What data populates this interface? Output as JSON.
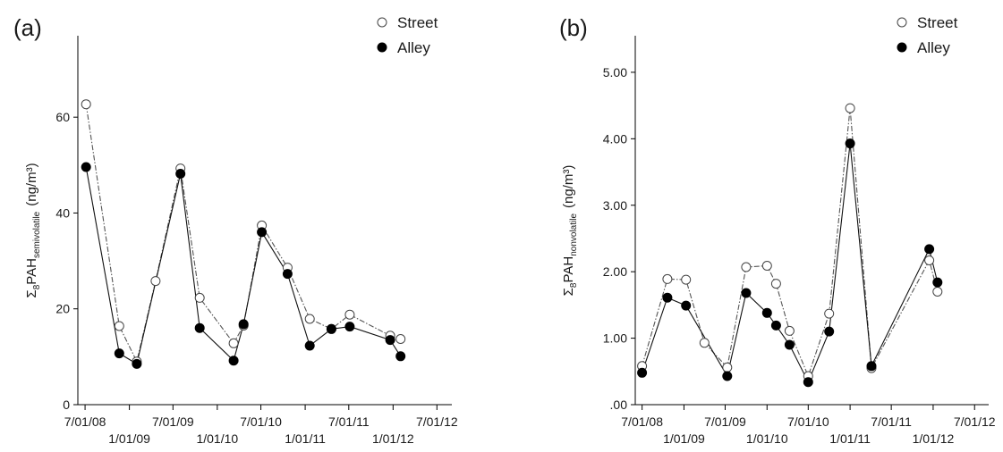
{
  "chart_data": [
    {
      "type": "line",
      "panel_label": "(a)",
      "ylabel": {
        "prefix": "Σ",
        "prefix_sub": "8",
        "main": "PAH",
        "sub": "semivolatile",
        "unit": "(ng/m³)"
      },
      "ylim": [
        0,
        77
      ],
      "yticks": [
        0,
        20,
        40,
        60
      ],
      "ytick_labels": [
        "0",
        "20",
        "40",
        "60"
      ],
      "xlim": [
        "2008-06-01",
        "2012-09-01"
      ],
      "xticks": [
        {
          "date": "2008-07-01",
          "label": "7/01/08",
          "row": 1
        },
        {
          "date": "2009-01-01",
          "label": "1/01/09",
          "row": 2
        },
        {
          "date": "2009-07-01",
          "label": "7/01/09",
          "row": 1
        },
        {
          "date": "2010-01-01",
          "label": "1/01/10",
          "row": 2
        },
        {
          "date": "2010-07-01",
          "label": "7/01/10",
          "row": 1
        },
        {
          "date": "2011-01-01",
          "label": "1/01/11",
          "row": 2
        },
        {
          "date": "2011-07-01",
          "label": "7/01/11",
          "row": 1
        },
        {
          "date": "2012-01-01",
          "label": "1/01/12",
          "row": 2
        },
        {
          "date": "2012-07-01",
          "label": "7/01/12",
          "row": 1
        }
      ],
      "legend": {
        "position": "top-right",
        "entries": [
          "Street",
          "Alley"
        ]
      },
      "series": [
        {
          "name": "Street",
          "marker": "open-circle",
          "x": [
            "2008-07-05",
            "2008-11-20",
            "2009-02-01",
            "2009-04-20",
            "2009-08-01",
            "2009-10-20",
            "2010-03-10",
            "2010-04-20",
            "2010-07-05",
            "2010-10-20",
            "2011-01-20",
            "2011-04-20",
            "2011-07-05",
            "2011-12-20",
            "2012-02-01"
          ],
          "y": [
            62.7,
            16.4,
            9.0,
            25.8,
            49.3,
            22.3,
            12.8,
            16.5,
            37.4,
            28.6,
            17.9,
            15.8,
            18.8,
            14.4,
            13.7
          ]
        },
        {
          "name": "Alley",
          "marker": "filled-circle",
          "x": [
            "2008-07-05",
            "2008-11-20",
            "2009-02-01",
            "2009-08-01",
            "2009-10-20",
            "2010-03-10",
            "2010-04-20",
            "2010-07-05",
            "2010-10-20",
            "2011-01-20",
            "2011-04-20",
            "2011-07-05",
            "2011-12-20",
            "2012-02-01"
          ],
          "y": [
            49.6,
            10.7,
            8.5,
            48.2,
            16.0,
            9.2,
            16.8,
            36.0,
            27.3,
            12.3,
            15.8,
            16.3,
            13.5,
            10.1
          ]
        }
      ]
    },
    {
      "type": "line",
      "panel_label": "(b)",
      "ylabel": {
        "prefix": "Σ",
        "prefix_sub": "8",
        "main": "PAH",
        "sub": "nonvolatile",
        "unit": "(ng/m³)"
      },
      "ylim": [
        0,
        5.55
      ],
      "yticks": [
        0,
        1,
        2,
        3,
        4,
        5
      ],
      "ytick_labels": [
        ".00",
        "1.00",
        "2.00",
        "3.00",
        "4.00",
        "5.00"
      ],
      "xlim": [
        "2008-06-01",
        "2012-09-01"
      ],
      "xticks": [
        {
          "date": "2008-07-01",
          "label": "7/01/08",
          "row": 1
        },
        {
          "date": "2009-01-01",
          "label": "1/01/09",
          "row": 2
        },
        {
          "date": "2009-07-01",
          "label": "7/01/09",
          "row": 1
        },
        {
          "date": "2010-01-01",
          "label": "1/01/10",
          "row": 2
        },
        {
          "date": "2010-07-01",
          "label": "7/01/10",
          "row": 1
        },
        {
          "date": "2011-01-01",
          "label": "1/01/11",
          "row": 2
        },
        {
          "date": "2011-07-01",
          "label": "7/01/11",
          "row": 1
        },
        {
          "date": "2012-01-01",
          "label": "1/01/12",
          "row": 2
        },
        {
          "date": "2012-07-01",
          "label": "7/01/12",
          "row": 1
        }
      ],
      "legend": {
        "position": "top-right",
        "entries": [
          "Street",
          "Alley"
        ]
      },
      "series": [
        {
          "name": "Street",
          "marker": "open-circle",
          "x": [
            "2008-07-01",
            "2008-10-20",
            "2009-01-10",
            "2009-04-01",
            "2009-07-10",
            "2009-10-01",
            "2010-01-01",
            "2010-02-10",
            "2010-04-10",
            "2010-07-01",
            "2010-10-01",
            "2011-01-01",
            "2011-04-05",
            "2011-12-15",
            "2012-01-20"
          ],
          "y": [
            0.58,
            1.89,
            1.88,
            0.93,
            0.56,
            2.07,
            2.09,
            1.82,
            1.11,
            0.43,
            1.37,
            4.46,
            0.55,
            2.17,
            1.7
          ]
        },
        {
          "name": "Alley",
          "marker": "filled-circle",
          "x": [
            "2008-07-01",
            "2008-10-20",
            "2009-01-10",
            "2009-07-10",
            "2009-10-01",
            "2010-01-01",
            "2010-02-10",
            "2010-04-10",
            "2010-07-01",
            "2010-10-01",
            "2011-01-01",
            "2011-04-05",
            "2011-12-15",
            "2012-01-20"
          ],
          "y": [
            0.48,
            1.61,
            1.49,
            0.43,
            1.68,
            1.38,
            1.19,
            0.9,
            0.34,
            1.1,
            3.93,
            0.58,
            2.34,
            1.84
          ]
        }
      ]
    }
  ]
}
